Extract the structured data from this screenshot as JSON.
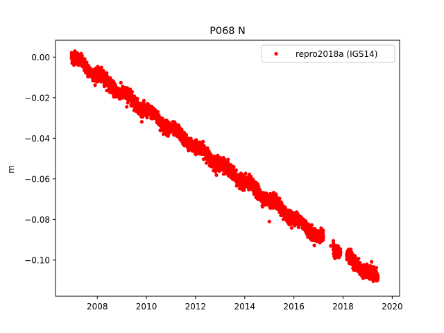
{
  "chart_data": {
    "type": "scatter",
    "title": "P068 N",
    "xlabel": "",
    "ylabel": "m",
    "xlim": [
      2006.3,
      2020.3
    ],
    "ylim": [
      -0.1178,
      0.0083
    ],
    "xticks": [
      2008,
      2010,
      2012,
      2014,
      2016,
      2018,
      2020
    ],
    "xtick_labels": [
      "2008",
      "2010",
      "2012",
      "2014",
      "2016",
      "2018",
      "2020"
    ],
    "yticks": [
      0.0,
      -0.02,
      -0.04,
      -0.06,
      -0.08,
      -0.1
    ],
    "ytick_labels": [
      "0.00",
      "−0.02",
      "−0.04",
      "−0.06",
      "−0.08",
      "−0.10"
    ],
    "grid": false,
    "legend_position": "top-right",
    "series": [
      {
        "name": "repro2018a (IGS14)",
        "color": "#ff0000",
        "marker": "circle",
        "trend": {
          "x_start": 2006.95,
          "y_start": 0.0005,
          "x_end": 2019.42,
          "y_end": -0.1095
        },
        "gaps": [
          [
            2017.2,
            2017.6
          ],
          [
            2017.9,
            2018.15
          ]
        ],
        "noise_std": 0.0015,
        "outliers": [
          {
            "x": 2015.0,
            "y": -0.081
          },
          {
            "x": 2016.85,
            "y": -0.0845
          },
          {
            "x": 2017.5,
            "y": -0.093
          },
          {
            "x": 2009.2,
            "y": -0.0245
          },
          {
            "x": 2012.9,
            "y": -0.0485
          },
          {
            "x": 2019.0,
            "y": -0.1052
          }
        ]
      }
    ]
  }
}
